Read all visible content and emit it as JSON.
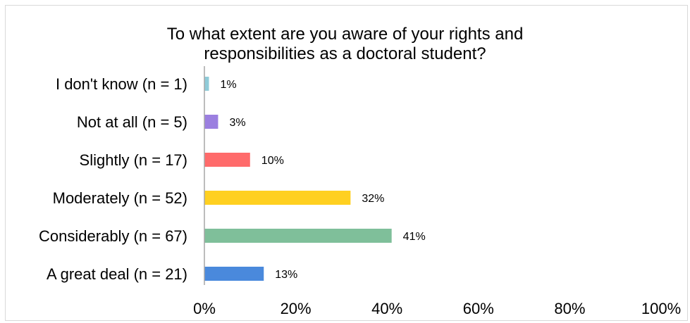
{
  "chart_data": {
    "type": "bar",
    "orientation": "horizontal",
    "title_lines": [
      "To what extent are you aware of your rights and",
      "responsibilities as a doctoral student?"
    ],
    "categories": [
      "I don't know (n = 1)",
      "Not at all (n = 5)",
      "Slightly (n = 17)",
      "Moderately (n = 52)",
      "Considerably (n = 67)",
      "A great deal (n = 21)"
    ],
    "values": [
      1,
      3,
      10,
      32,
      41,
      13
    ],
    "data_labels": [
      "1%",
      "3%",
      "10%",
      "32%",
      "41%",
      "13%"
    ],
    "colors": [
      "#8fcbd8",
      "#9b7fe0",
      "#ff6b6b",
      "#ffd021",
      "#7fbf9a",
      "#4a89dc"
    ],
    "xlim": [
      0,
      100
    ],
    "xticks": [
      0,
      20,
      40,
      60,
      80,
      100
    ],
    "xtick_labels": [
      "0%",
      "20%",
      "40%",
      "60%",
      "80%",
      "100%"
    ],
    "grid": false,
    "legend": "none"
  }
}
